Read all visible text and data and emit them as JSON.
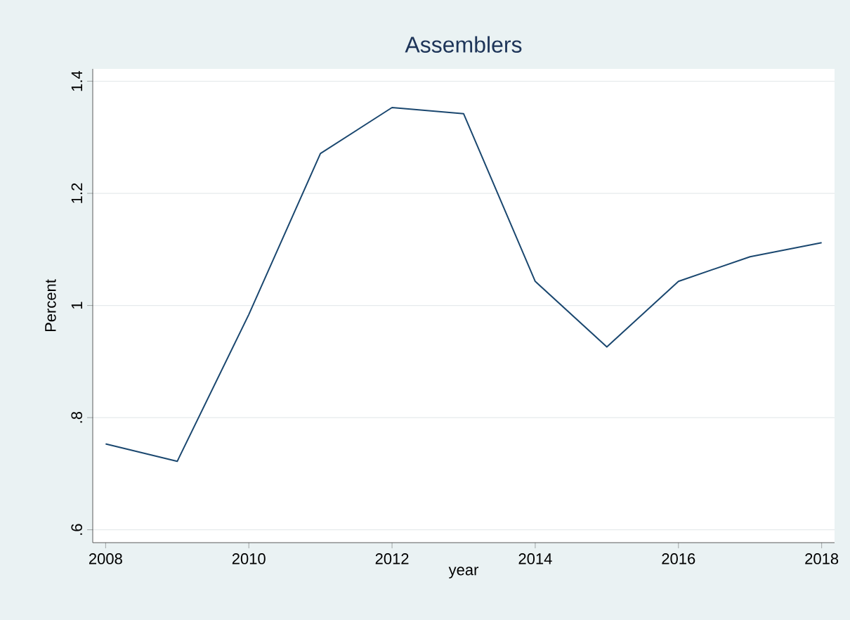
{
  "chart_data": {
    "type": "line",
    "title": "Assemblers",
    "xlabel": "year",
    "ylabel": "Percent",
    "x": [
      2008,
      2009,
      2010,
      2011,
      2012,
      2013,
      2014,
      2015,
      2016,
      2017,
      2018
    ],
    "series": [
      {
        "color": "#1a476f",
        "values": [
          0.753,
          0.722,
          0.984,
          1.271,
          1.353,
          1.342,
          1.043,
          0.926,
          1.043,
          1.087,
          1.112
        ]
      }
    ],
    "xlim": [
      2007.82,
      2018.18
    ],
    "ylim": [
      0.577,
      1.422
    ],
    "xticks": [
      2008,
      2010,
      2012,
      2014,
      2016,
      2018
    ],
    "yticks": [
      {
        "value": 0.6,
        "label": ".6"
      },
      {
        "value": 0.8,
        "label": ".8"
      },
      1,
      1.2,
      1.4
    ],
    "grid": "y",
    "marker": "none",
    "line_style": "solid"
  }
}
